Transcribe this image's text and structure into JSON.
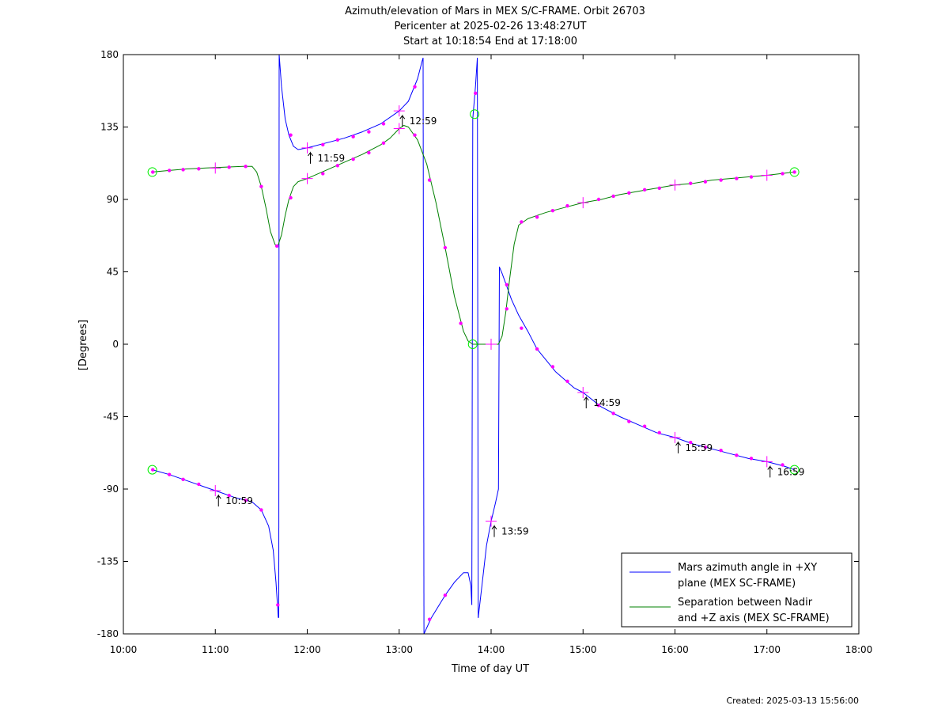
{
  "chart_data": {
    "type": "line",
    "title_lines": [
      "Azimuth/elevation of Mars in MEX S/C-FRAME.  Orbit 26703",
      "Pericenter at 2025-02-26 13:48:27UT",
      "Start at 10:18:54 End at 17:18:00"
    ],
    "xlabel": "Time of day UT",
    "ylabel": "[Degrees]",
    "xlim": [
      10,
      18
    ],
    "ylim": [
      -180,
      180
    ],
    "x_ticks": [
      10,
      11,
      12,
      13,
      14,
      15,
      16,
      17,
      18
    ],
    "x_tick_labels": [
      "10:00",
      "11:00",
      "12:00",
      "13:00",
      "14:00",
      "15:00",
      "16:00",
      "17:00",
      "18:00"
    ],
    "y_ticks": [
      180,
      135,
      90,
      45,
      0,
      -45,
      -90,
      -135,
      -180
    ],
    "y_tick_labels": [
      "180",
      "135",
      "90",
      "45",
      "0",
      "-45",
      "-90",
      "-135",
      "-180"
    ],
    "grid": false,
    "legend_position": "bottom-right",
    "series": [
      {
        "name": "Mars azimuth angle in +XY plane (MEX SC-FRAME)",
        "legend_lines": [
          "Mars azimuth angle in +XY",
          "plane (MEX SC-FRAME)"
        ],
        "color": "#0000ff",
        "segments": [
          [
            [
              10.315,
              -78
            ],
            [
              10.5,
              -81
            ],
            [
              10.7,
              -85
            ],
            [
              10.9,
              -89
            ],
            [
              11.0,
              -91
            ],
            [
              11.2,
              -95
            ],
            [
              11.4,
              -98
            ],
            [
              11.5,
              -103
            ],
            [
              11.58,
              -113
            ],
            [
              11.63,
              -128
            ],
            [
              11.66,
              -148
            ],
            [
              11.685,
              -170
            ]
          ],
          [
            [
              11.69,
              -170
            ],
            [
              11.695,
              180
            ]
          ],
          [
            [
              11.695,
              180
            ],
            [
              11.72,
              160
            ],
            [
              11.76,
              140
            ],
            [
              11.8,
              130
            ],
            [
              11.85,
              123
            ],
            [
              11.9,
              121
            ],
            [
              12.0,
              122
            ],
            [
              12.2,
              125
            ],
            [
              12.4,
              128
            ],
            [
              12.6,
              132
            ],
            [
              12.8,
              137
            ],
            [
              13.0,
              145
            ],
            [
              13.1,
              151
            ],
            [
              13.2,
              165
            ],
            [
              13.25,
              176
            ],
            [
              13.26,
              178
            ]
          ],
          [
            [
              13.26,
              178
            ],
            [
              13.27,
              -180
            ]
          ],
          [
            [
              13.27,
              -180
            ],
            [
              13.35,
              -170
            ],
            [
              13.5,
              -156
            ],
            [
              13.6,
              -148
            ],
            [
              13.7,
              -142
            ],
            [
              13.75,
              -142
            ],
            [
              13.78,
              -150
            ],
            [
              13.79,
              -162
            ]
          ],
          [
            [
              13.79,
              -162
            ],
            [
              13.8,
              140
            ],
            [
              13.83,
              160
            ],
            [
              13.85,
              178
            ]
          ],
          [
            [
              13.85,
              178
            ],
            [
              13.86,
              -170
            ]
          ],
          [
            [
              13.86,
              -170
            ],
            [
              13.9,
              -150
            ],
            [
              13.95,
              -125
            ],
            [
              14.0,
              -110
            ],
            [
              14.05,
              -98
            ],
            [
              14.08,
              -90
            ],
            [
              14.09,
              48
            ],
            [
              14.12,
              44
            ],
            [
              14.17,
              36
            ],
            [
              14.22,
              28
            ],
            [
              14.3,
              18
            ],
            [
              14.4,
              8
            ],
            [
              14.5,
              -3
            ],
            [
              14.7,
              -17
            ],
            [
              14.9,
              -27
            ],
            [
              15.0,
              -30
            ],
            [
              15.2,
              -39
            ],
            [
              15.4,
              -45
            ],
            [
              15.6,
              -50
            ],
            [
              15.8,
              -55
            ],
            [
              16.0,
              -58
            ],
            [
              16.2,
              -62
            ],
            [
              16.4,
              -65
            ],
            [
              16.6,
              -68
            ],
            [
              16.8,
              -71
            ],
            [
              17.0,
              -73
            ],
            [
              17.2,
              -76
            ],
            [
              17.3,
              -78
            ]
          ]
        ]
      },
      {
        "name": "Separation between Nadir and +Z axis (MEX SC-FRAME)",
        "legend_lines": [
          "Separation between Nadir",
          "and +Z axis (MEX SC-FRAME)"
        ],
        "color": "#008000",
        "segments": [
          [
            [
              10.315,
              107
            ],
            [
              10.5,
              108
            ],
            [
              10.7,
              109
            ],
            [
              10.9,
              109.5
            ],
            [
              11.1,
              110
            ],
            [
              11.3,
              110.5
            ],
            [
              11.4,
              110.5
            ],
            [
              11.45,
              107
            ],
            [
              11.5,
              98
            ],
            [
              11.55,
              85
            ],
            [
              11.6,
              70
            ],
            [
              11.65,
              62
            ],
            [
              11.68,
              61
            ],
            [
              11.72,
              68
            ],
            [
              11.76,
              80
            ],
            [
              11.8,
              90
            ],
            [
              11.85,
              98
            ],
            [
              11.9,
              101
            ],
            [
              12.0,
              103
            ],
            [
              12.2,
              108
            ],
            [
              12.4,
              113
            ],
            [
              12.6,
              118
            ],
            [
              12.8,
              124
            ],
            [
              12.9,
              128
            ],
            [
              13.0,
              134
            ],
            [
              13.05,
              136
            ],
            [
              13.1,
              135
            ],
            [
              13.2,
              127
            ],
            [
              13.3,
              112
            ],
            [
              13.4,
              88
            ],
            [
              13.5,
              60
            ],
            [
              13.6,
              30
            ],
            [
              13.7,
              8
            ],
            [
              13.75,
              2
            ],
            [
              13.8,
              0
            ],
            [
              13.85,
              0
            ],
            [
              14.0,
              0
            ],
            [
              14.08,
              0
            ],
            [
              14.12,
              5
            ],
            [
              14.16,
              20
            ],
            [
              14.2,
              40
            ],
            [
              14.25,
              62
            ],
            [
              14.3,
              74
            ],
            [
              14.4,
              78
            ],
            [
              14.5,
              80
            ],
            [
              14.6,
              82
            ],
            [
              14.8,
              85
            ],
            [
              15.0,
              88
            ],
            [
              15.2,
              90
            ],
            [
              15.4,
              93
            ],
            [
              15.6,
              95
            ],
            [
              15.8,
              97
            ],
            [
              16.0,
              99
            ],
            [
              16.2,
              100
            ],
            [
              16.4,
              102
            ],
            [
              16.6,
              103
            ],
            [
              16.8,
              104
            ],
            [
              17.0,
              105
            ],
            [
              17.3,
              107
            ]
          ]
        ]
      }
    ],
    "hour_markers": [
      [
        11.0,
        -91
      ],
      [
        12.0,
        122
      ],
      [
        13.0,
        145
      ],
      [
        14.0,
        -110
      ],
      [
        15.0,
        -30
      ],
      [
        16.0,
        -58
      ],
      [
        17.0,
        -73
      ],
      [
        11.0,
        109.5
      ],
      [
        12.0,
        103
      ],
      [
        13.0,
        134
      ],
      [
        14.0,
        0
      ],
      [
        15.0,
        88
      ],
      [
        16.0,
        99
      ],
      [
        17.0,
        105
      ]
    ],
    "dot_markers": [
      [
        10.32,
        -78
      ],
      [
        10.5,
        -81
      ],
      [
        10.65,
        -84
      ],
      [
        10.82,
        -87
      ],
      [
        11.15,
        -94
      ],
      [
        11.33,
        -97
      ],
      [
        11.5,
        -103
      ],
      [
        11.68,
        -162
      ],
      [
        11.82,
        130
      ],
      [
        12.17,
        124
      ],
      [
        12.33,
        127
      ],
      [
        12.5,
        129
      ],
      [
        12.67,
        132
      ],
      [
        12.83,
        137
      ],
      [
        13.17,
        160
      ],
      [
        13.33,
        -171
      ],
      [
        13.5,
        -156
      ],
      [
        13.83,
        156
      ],
      [
        14.17,
        37
      ],
      [
        14.33,
        10
      ],
      [
        14.5,
        -3
      ],
      [
        14.67,
        -14
      ],
      [
        14.83,
        -23
      ],
      [
        15.17,
        -38
      ],
      [
        15.33,
        -43
      ],
      [
        15.5,
        -48
      ],
      [
        15.67,
        -51
      ],
      [
        15.83,
        -55
      ],
      [
        16.17,
        -61
      ],
      [
        16.33,
        -64
      ],
      [
        16.5,
        -66
      ],
      [
        16.67,
        -69
      ],
      [
        16.83,
        -71
      ],
      [
        17.17,
        -75
      ],
      [
        10.32,
        107
      ],
      [
        10.5,
        108
      ],
      [
        10.65,
        108.5
      ],
      [
        10.82,
        109
      ],
      [
        11.15,
        110
      ],
      [
        11.33,
        110.5
      ],
      [
        11.5,
        98
      ],
      [
        11.67,
        61
      ],
      [
        11.82,
        91
      ],
      [
        12.17,
        106
      ],
      [
        12.33,
        111
      ],
      [
        12.5,
        115
      ],
      [
        12.67,
        119
      ],
      [
        12.83,
        125
      ],
      [
        13.17,
        130
      ],
      [
        13.33,
        102
      ],
      [
        13.5,
        60
      ],
      [
        13.67,
        13
      ],
      [
        14.17,
        22
      ],
      [
        14.33,
        76
      ],
      [
        14.5,
        79
      ],
      [
        14.67,
        83
      ],
      [
        14.83,
        86
      ],
      [
        15.17,
        90
      ],
      [
        15.33,
        92
      ],
      [
        15.5,
        94
      ],
      [
        15.67,
        96
      ],
      [
        15.83,
        97
      ],
      [
        16.17,
        100
      ],
      [
        16.33,
        101
      ],
      [
        16.5,
        102
      ],
      [
        16.67,
        103
      ],
      [
        16.83,
        104
      ],
      [
        17.17,
        106
      ],
      [
        17.3,
        107
      ]
    ],
    "circle_markers": [
      [
        10.315,
        107
      ],
      [
        10.315,
        -78
      ],
      [
        13.8,
        0
      ],
      [
        13.82,
        143
      ],
      [
        17.3,
        107
      ],
      [
        17.3,
        -78
      ]
    ],
    "annotations": [
      {
        "x": 11.0,
        "y": -91,
        "label": "10:59"
      },
      {
        "x": 12.0,
        "y": 122,
        "label": "11:59"
      },
      {
        "x": 13.0,
        "y": 145,
        "label": "12:59"
      },
      {
        "x": 14.0,
        "y": -110,
        "label": "13:59"
      },
      {
        "x": 15.0,
        "y": -30,
        "label": "14:59"
      },
      {
        "x": 16.0,
        "y": -58,
        "label": "15:59"
      },
      {
        "x": 17.0,
        "y": -73,
        "label": "16:59"
      }
    ],
    "created_text": "Created: 2025-03-13 15:56:00"
  }
}
